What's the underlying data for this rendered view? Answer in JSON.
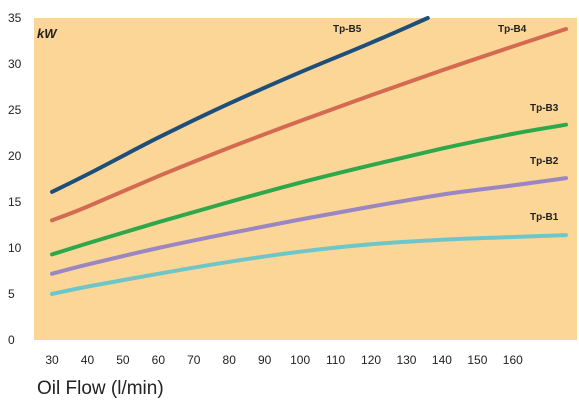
{
  "chart_data": {
    "type": "line",
    "ylabel": "kW",
    "xlabel": "Oil Flow (l/min)",
    "x_ticks": [
      30,
      40,
      50,
      60,
      70,
      80,
      90,
      100,
      110,
      120,
      130,
      140,
      150,
      160
    ],
    "y_ticks": [
      0,
      5,
      10,
      15,
      20,
      25,
      30,
      35
    ],
    "xlim": [
      30,
      175
    ],
    "ylim": [
      0,
      35
    ],
    "grid": false,
    "background_color": "#fbd697",
    "series": [
      {
        "name": "Tp-B1",
        "color": "#6fc6c8",
        "x": [
          30,
          40,
          60,
          80,
          100,
          120,
          140,
          160,
          175
        ],
        "y": [
          5.0,
          5.8,
          7.2,
          8.5,
          9.6,
          10.4,
          10.9,
          11.2,
          11.4
        ]
      },
      {
        "name": "Tp-B2",
        "color": "#9b86c4",
        "x": [
          30,
          40,
          60,
          80,
          100,
          120,
          140,
          160,
          175
        ],
        "y": [
          7.2,
          8.2,
          10.0,
          11.6,
          13.1,
          14.5,
          15.8,
          16.8,
          17.6
        ]
      },
      {
        "name": "Tp-B3",
        "color": "#2ea84a",
        "x": [
          30,
          40,
          60,
          80,
          100,
          120,
          140,
          160,
          175
        ],
        "y": [
          9.3,
          10.5,
          12.8,
          15.0,
          17.1,
          19.0,
          20.8,
          22.4,
          23.4
        ]
      },
      {
        "name": "Tp-B4",
        "color": "#d46a52",
        "x": [
          30,
          40,
          60,
          80,
          100,
          120,
          140,
          160,
          175
        ],
        "y": [
          13.0,
          14.5,
          17.8,
          20.9,
          23.8,
          26.6,
          29.3,
          31.9,
          33.8
        ]
      },
      {
        "name": "Tp-B5",
        "color": "#1e4f7a",
        "x": [
          30,
          40,
          60,
          80,
          100,
          120,
          136
        ],
        "y": [
          16.1,
          18.0,
          22.0,
          25.7,
          29.1,
          32.3,
          35.0
        ]
      }
    ]
  }
}
